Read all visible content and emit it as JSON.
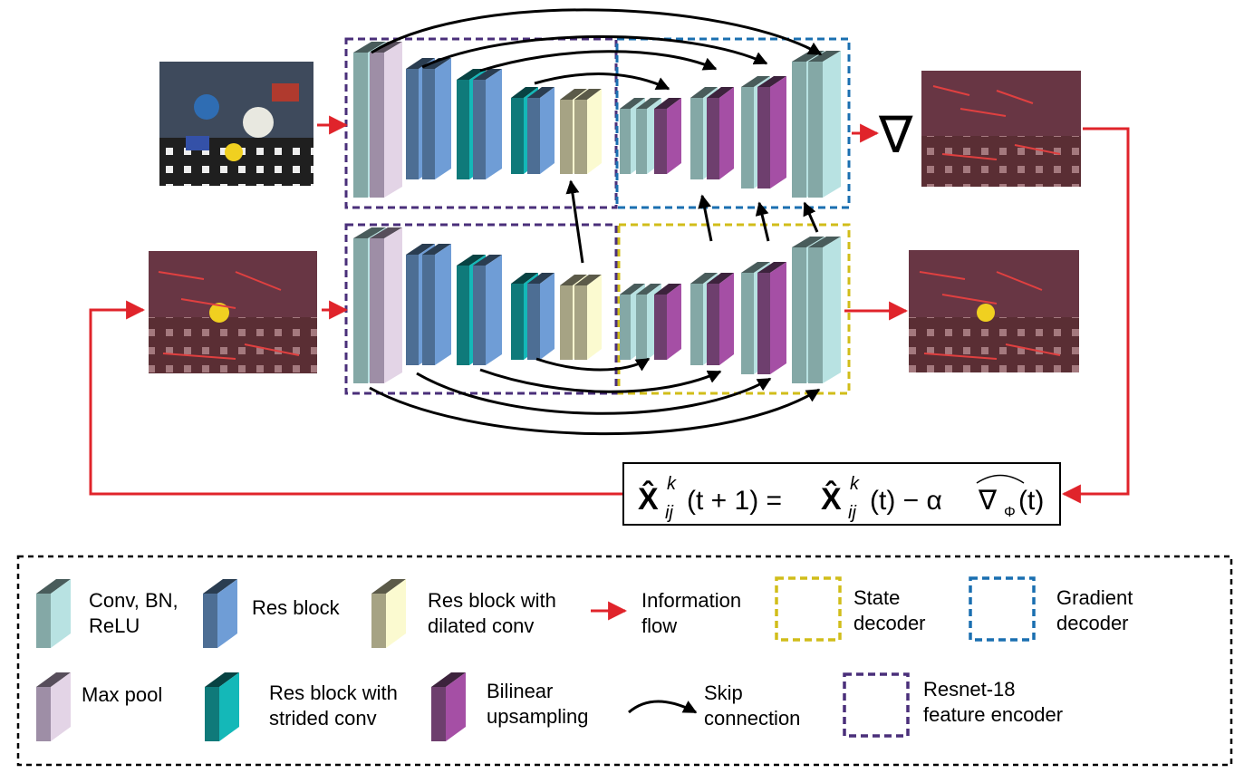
{
  "gradient_symbol": "∇",
  "update_rule": {
    "lhs": "X̂",
    "lhs_sup": "k",
    "lhs_sub": "ij",
    "lhs_arg": "(t + 1) =",
    "rhs": "X̂",
    "rhs_sup": "k",
    "rhs_sub": "ij",
    "rhs_arg": "(t) − α",
    "grad": "∇",
    "grad_sub": "Φ",
    "grad_arg": "(t)"
  },
  "legend": {
    "conv_bn_relu": [
      "Conv, BN,",
      "ReLU"
    ],
    "res_block": "Res block",
    "res_dilated": [
      "Res block with",
      "dilated conv"
    ],
    "info_flow": [
      "Information",
      "flow"
    ],
    "state_decoder": [
      "State",
      "decoder"
    ],
    "gradient_decoder": [
      "Gradient",
      "decoder"
    ],
    "max_pool": "Max pool",
    "res_strided": [
      "Res block with",
      "strided conv"
    ],
    "bilinear": [
      "Bilinear",
      "upsampling"
    ],
    "skip": [
      "Skip",
      "connection"
    ],
    "resnet_encoder": [
      "Resnet-18",
      "feature encoder"
    ]
  },
  "colors": {
    "conv": "#84a8a6",
    "conv_face": "#b8e2e2",
    "maxpool": "#9e8ea6",
    "maxpool_face": "#e3d4e6",
    "res": "#4d6e94",
    "res_face": "#6f9dd6",
    "strided": "#0f7a7a",
    "strided_face": "#14b8b8",
    "dilated": "#a6a384",
    "dilated_face": "#fbfad0",
    "bilinear": "#6e3f6e",
    "bilinear_face": "#a54fa5",
    "info_flow": "#e0242b",
    "state_box": "#d1bd1a",
    "gradient_box": "#1a6fb0",
    "encoder_box": "#4a2f7a"
  }
}
